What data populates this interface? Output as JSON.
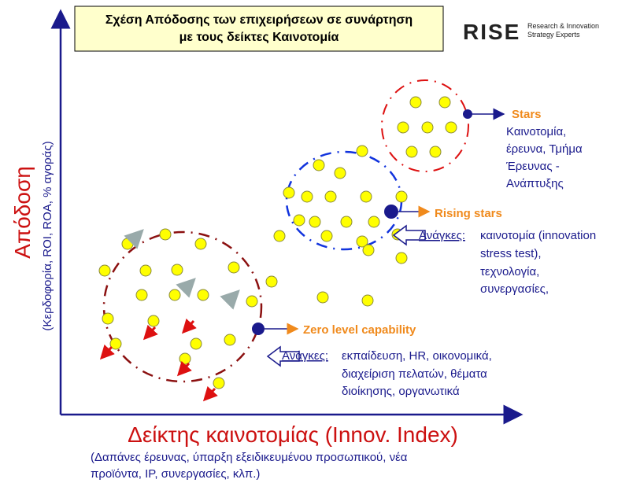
{
  "title": {
    "lines": [
      "Σχέση Απόδοσης των επιχειρήσεων σε συνάρτηση",
      "με τους δείκτες Καινοτομία"
    ]
  },
  "logo": {
    "name": "RISE",
    "tagline": [
      "Research & Innovation",
      "Strategy Experts"
    ]
  },
  "y_axis": {
    "title": "Απόδοση",
    "subtitle": "(Κερδοφορία, ROI, ROA, % αγοράς)"
  },
  "x_axis": {
    "title": "Δείκτης καινοτομίας (Innov. Index)",
    "subtitle": [
      "(Δαπάνες έρευνας, ύπαρξη εξειδικευμένου προσωπικού, νέα",
      "προϊόντα, IP, συνεργασίες, κλπ.)"
    ]
  },
  "groups": [
    {
      "label": "Stars",
      "description": [
        "Καινοτομία,",
        "έρευνα, Τμήμα",
        "Έρευνας -",
        "Ανάπτυξης"
      ]
    },
    {
      "label": "Rising stars",
      "needs_label": "Ανάγκες:",
      "needs": [
        "καινοτομία (innovation",
        "stress test),",
        "τεχνολογία,",
        "συνεργασίες,"
      ]
    },
    {
      "label": "Zero level capability",
      "needs_label": "Ανάγκες:",
      "needs": [
        "εκπαίδευση, HR, οικονομικά,",
        "διαχείριση πελατών, θέματα",
        "διοίκησης, οργανωτικά"
      ]
    }
  ]
}
